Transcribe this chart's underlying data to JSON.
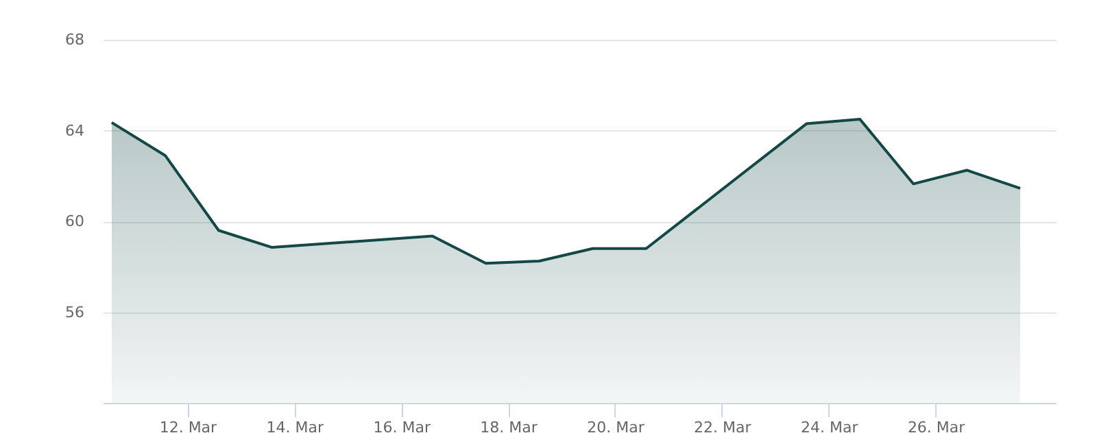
{
  "chart_data": {
    "type": "area",
    "x": [
      "--03-10T14:00",
      "--03-11T14:00",
      "--03-12T14:00",
      "--03-13T14:00",
      "--03-16T14:00",
      "--03-17T14:00",
      "--03-18T14:00",
      "--03-19T14:00",
      "--03-20T14:00",
      "--03-23T14:00",
      "--03-24T14:00",
      "--03-25T14:00",
      "--03-26T14:00",
      "--03-27T14:00"
    ],
    "series": [
      {
        "color": "#124845",
        "values": [
          64.35,
          62.9,
          59.6,
          58.85,
          59.35,
          58.15,
          58.25,
          58.8,
          58.8,
          64.3,
          64.5,
          61.65,
          62.25,
          61.45
        ]
      }
    ],
    "xlim": [
      "--03-10T10:00",
      "--03-28T06:00"
    ],
    "xticks": [
      {
        "value": "--03-12",
        "label": "12. Mar"
      },
      {
        "value": "--03-14",
        "label": "14. Mar"
      },
      {
        "value": "--03-16",
        "label": "16. Mar"
      },
      {
        "value": "--03-18",
        "label": "18. Mar"
      },
      {
        "value": "--03-20",
        "label": "20. Mar"
      },
      {
        "value": "--03-22",
        "label": "22. Mar"
      },
      {
        "value": "--03-24",
        "label": "24. Mar"
      },
      {
        "value": "--03-26",
        "label": "26. Mar"
      }
    ],
    "ylim": [
      52,
      68
    ],
    "yticks": [
      56,
      60,
      64,
      68
    ],
    "grid": "y"
  }
}
